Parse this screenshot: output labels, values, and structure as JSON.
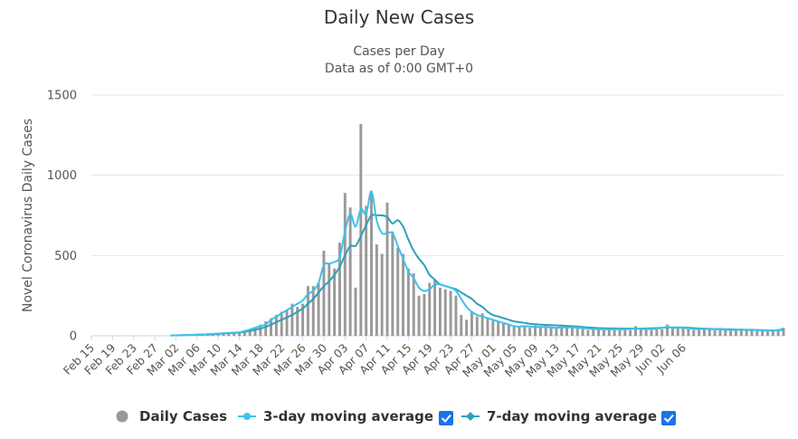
{
  "chart_data": {
    "type": "bar",
    "title": "Daily New Cases",
    "subtitle_lines": [
      "Cases per Day",
      "Data as of 0:00 GMT+0"
    ],
    "xlabel": "",
    "ylabel": "Novel Coronavirus Daily Cases",
    "ylim": [
      0,
      1500
    ],
    "yticks": [
      "0",
      "500",
      "1000",
      "1500"
    ],
    "grid": true,
    "legend_position": "bottom",
    "start_date": "2020-02-15",
    "categories_note": "Daily points from Feb 15 to Jun 06",
    "xtick_labels": [
      "Feb 15",
      "Feb 19",
      "Feb 23",
      "Feb 27",
      "Mar 02",
      "Mar 06",
      "Mar 10",
      "Mar 14",
      "Mar 18",
      "Mar 22",
      "Mar 26",
      "Mar 30",
      "Apr 03",
      "Apr 07",
      "Apr 11",
      "Apr 15",
      "Apr 19",
      "Apr 23",
      "Apr 27",
      "May 01",
      "May 05",
      "May 09",
      "May 13",
      "May 17",
      "May 21",
      "May 25",
      "May 29",
      "Jun 02",
      "Jun 06"
    ],
    "series": [
      {
        "name": "Daily Cases",
        "type": "bar",
        "color": "#999999",
        "values": [
          0,
          0,
          0,
          0,
          0,
          0,
          0,
          0,
          0,
          0,
          0,
          0,
          0,
          0,
          0,
          2,
          3,
          4,
          5,
          6,
          7,
          8,
          10,
          12,
          14,
          16,
          18,
          20,
          22,
          30,
          40,
          50,
          70,
          90,
          110,
          130,
          150,
          160,
          200,
          180,
          200,
          310,
          310,
          330,
          530,
          450,
          420,
          580,
          890,
          800,
          300,
          1320,
          810,
          900,
          570,
          510,
          830,
          650,
          550,
          510,
          420,
          390,
          250,
          260,
          330,
          350,
          300,
          290,
          280,
          250,
          130,
          100,
          150,
          120,
          140,
          110,
          100,
          90,
          80,
          70,
          60,
          55,
          60,
          50,
          65,
          55,
          60,
          50,
          45,
          70,
          60,
          50,
          55,
          50,
          35,
          40,
          45,
          35,
          40,
          35,
          45,
          40,
          35,
          60,
          40,
          45,
          35,
          40,
          40,
          70,
          45,
          45,
          50,
          40,
          35,
          45,
          40,
          45,
          35,
          40,
          40,
          30,
          40,
          45,
          35,
          40,
          35,
          30,
          35,
          30,
          40,
          50
        ]
      },
      {
        "name": "3-day moving average",
        "type": "line",
        "color": "#3fc1ec",
        "checked": true,
        "values": [
          0,
          0,
          0,
          0,
          0,
          0,
          0,
          0,
          0,
          0,
          0,
          0,
          0,
          0,
          0,
          2,
          3,
          4,
          5,
          6,
          7,
          8,
          10,
          12,
          14,
          16,
          18,
          20,
          22,
          30,
          40,
          50,
          60,
          70,
          100,
          120,
          140,
          160,
          180,
          200,
          220,
          260,
          280,
          330,
          440,
          450,
          460,
          490,
          650,
          760,
          680,
          790,
          760,
          900,
          720,
          640,
          640,
          640,
          560,
          480,
          400,
          360,
          300,
          280,
          290,
          320,
          320,
          310,
          300,
          280,
          230,
          180,
          150,
          130,
          120,
          110,
          100,
          90,
          80,
          70,
          60,
          58,
          60,
          58,
          55,
          55,
          55,
          52,
          50,
          52,
          52,
          52,
          50,
          48,
          45,
          42,
          42,
          40,
          40,
          40,
          40,
          40,
          42,
          45,
          42,
          42,
          42,
          45,
          48,
          55,
          50,
          50,
          50,
          45,
          42,
          42,
          42,
          42,
          40,
          40,
          38,
          36,
          36,
          38,
          38,
          38,
          36,
          34,
          33,
          33,
          36,
          45
        ]
      },
      {
        "name": "7-day moving average",
        "type": "line",
        "color": "#2e9fbb",
        "checked": true,
        "values": [
          0,
          0,
          0,
          0,
          0,
          0,
          0,
          0,
          0,
          0,
          0,
          0,
          0,
          0,
          0,
          2,
          3,
          4,
          5,
          6,
          7,
          8,
          9,
          10,
          12,
          14,
          16,
          18,
          20,
          25,
          30,
          38,
          45,
          55,
          70,
          85,
          100,
          115,
          130,
          150,
          170,
          200,
          230,
          270,
          310,
          340,
          380,
          430,
          500,
          560,
          560,
          620,
          690,
          750,
          750,
          750,
          740,
          700,
          720,
          680,
          600,
          530,
          480,
          440,
          380,
          350,
          320,
          310,
          300,
          290,
          270,
          250,
          230,
          200,
          180,
          150,
          130,
          120,
          110,
          100,
          90,
          85,
          80,
          75,
          72,
          70,
          68,
          66,
          65,
          63,
          62,
          60,
          58,
          55,
          52,
          50,
          48,
          47,
          46,
          46,
          45,
          45,
          45,
          45,
          45,
          46,
          47,
          48,
          50,
          52,
          52,
          52,
          52,
          50,
          48,
          46,
          45,
          44,
          42,
          42,
          41,
          40,
          39,
          38,
          37,
          36,
          36,
          35,
          34,
          34,
          35,
          38
        ]
      }
    ]
  },
  "legend": {
    "items": [
      {
        "label": "Daily Cases"
      },
      {
        "label": "3-day moving average"
      },
      {
        "label": "7-day moving average"
      }
    ]
  }
}
